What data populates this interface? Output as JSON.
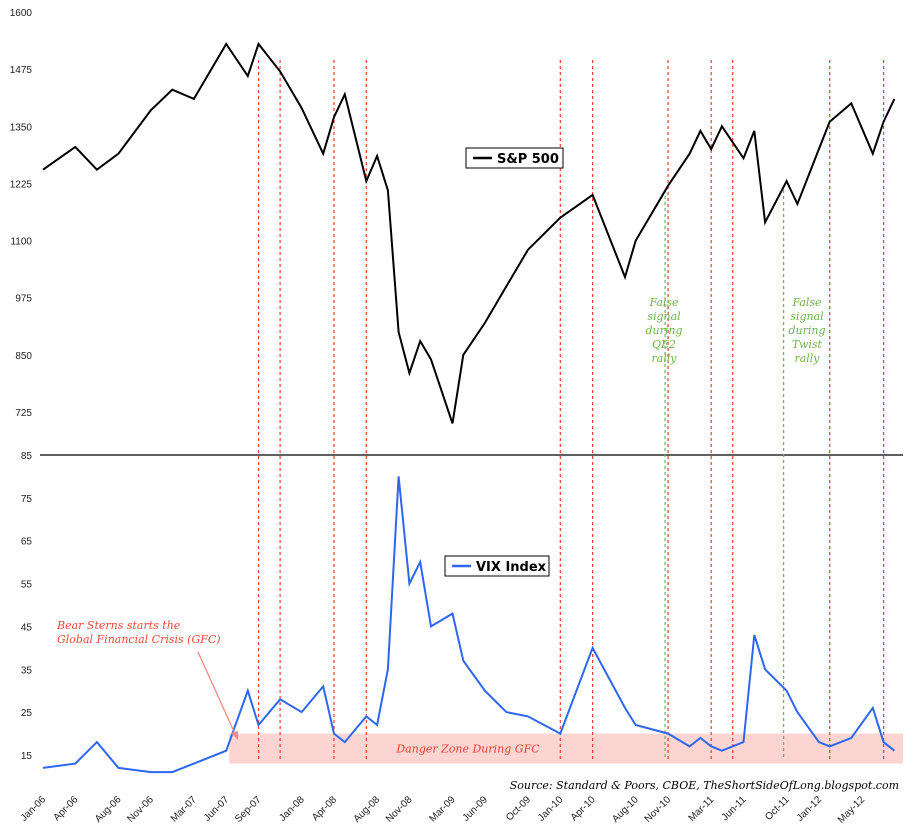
{
  "chart_data": [
    {
      "type": "line",
      "series": [
        {
          "name": "S&P 500",
          "color": "#000000",
          "x": [
            "Jan-06",
            "Apr-06",
            "Jun-06",
            "Aug-06",
            "Nov-06",
            "Jan-07",
            "Mar-07",
            "Jun-07",
            "Aug-07",
            "Sep-07",
            "Nov-07",
            "Jan-08",
            "Mar-08",
            "Apr-08",
            "May-08",
            "Jul-08",
            "Aug-08",
            "Sep-08",
            "Oct-08",
            "Nov-08",
            "Dec-08",
            "Jan-09",
            "Mar-09",
            "Apr-09",
            "Jun-09",
            "Aug-09",
            "Oct-09",
            "Jan-10",
            "Apr-10",
            "Jul-10",
            "Aug-10",
            "Nov-10",
            "Jan-11",
            "Feb-11",
            "Mar-11",
            "Apr-11",
            "Jun-11",
            "Jul-11",
            "Aug-11",
            "Oct-11",
            "Nov-11",
            "Jan-12",
            "Feb-12",
            "Apr-12",
            "Jun-12",
            "Jul-12",
            "Aug-12"
          ],
          "values": [
            1255,
            1305,
            1255,
            1290,
            1385,
            1430,
            1410,
            1530,
            1460,
            1530,
            1470,
            1390,
            1290,
            1370,
            1420,
            1230,
            1285,
            1210,
            900,
            810,
            880,
            840,
            700,
            850,
            920,
            1000,
            1080,
            1150,
            1200,
            1020,
            1100,
            1220,
            1290,
            1340,
            1300,
            1350,
            1280,
            1340,
            1140,
            1230,
            1180,
            1300,
            1360,
            1400,
            1290,
            1360,
            1410
          ]
        }
      ],
      "ylim": [
        650,
        1600
      ],
      "yticks": [
        "1600",
        "1475",
        "1350",
        "1225",
        "1100",
        "975",
        "850",
        "725"
      ],
      "legend": "S&P 500",
      "legend_position": "top-center"
    },
    {
      "type": "line",
      "series": [
        {
          "name": "VIX Index",
          "color": "#2d67ee",
          "x": [
            "Jan-06",
            "Apr-06",
            "Jun-06",
            "Aug-06",
            "Nov-06",
            "Jan-07",
            "Mar-07",
            "Jun-07",
            "Aug-07",
            "Sep-07",
            "Nov-07",
            "Jan-08",
            "Mar-08",
            "Apr-08",
            "May-08",
            "Jul-08",
            "Aug-08",
            "Sep-08",
            "Oct-08",
            "Nov-08",
            "Dec-08",
            "Jan-09",
            "Mar-09",
            "Apr-09",
            "Jun-09",
            "Aug-09",
            "Oct-09",
            "Jan-10",
            "Apr-10",
            "Jul-10",
            "Aug-10",
            "Nov-10",
            "Jan-11",
            "Feb-11",
            "Mar-11",
            "Apr-11",
            "Jun-11",
            "Jul-11",
            "Aug-11",
            "Oct-11",
            "Nov-11",
            "Jan-12",
            "Feb-12",
            "Apr-12",
            "Jun-12",
            "Jul-12",
            "Aug-12"
          ],
          "values": [
            12,
            13,
            18,
            12,
            11,
            11,
            13,
            16,
            30,
            22,
            28,
            25,
            31,
            20,
            18,
            24,
            22,
            35,
            80,
            55,
            60,
            45,
            48,
            37,
            30,
            25,
            24,
            20,
            40,
            26,
            22,
            20,
            17,
            19,
            17,
            16,
            18,
            43,
            35,
            30,
            25,
            18,
            17,
            19,
            26,
            18,
            16
          ]
        }
      ],
      "ylim": [
        5,
        85
      ],
      "yticks": [
        "85",
        "75",
        "65",
        "55",
        "45",
        "35",
        "25",
        "15"
      ],
      "legend": "VIX Index",
      "legend_position": "center",
      "danger_zone": {
        "from": 13,
        "to": 20,
        "label": "Danger Zone During GFC"
      }
    }
  ],
  "x_tick_labels": [
    "Jan-06",
    "Apr-06",
    "Aug-06",
    "Nov-06",
    "Mar-07",
    "Jun-07",
    "Sep-07",
    "Jan-08",
    "Apr-08",
    "Aug-08",
    "Nov-08",
    "Mar-09",
    "Jun-09",
    "Oct-09",
    "Jan-10",
    "Apr-10",
    "Aug-10",
    "Nov-10",
    "Mar-11",
    "Jun-11",
    "Oct-11",
    "Jan-12",
    "May-12"
  ],
  "signal_lines": {
    "red": [
      "Sep-07",
      "Nov-07",
      "Apr-08",
      "Jul-08",
      "Jan-10",
      "Apr-10",
      "Nov-10",
      "Mar-11",
      "May-11",
      "Feb-12",
      "Jul-12"
    ],
    "green": [
      "Nov-10",
      "Oct-11"
    ]
  },
  "annotations": {
    "qe2": [
      "False",
      "signal",
      "during",
      "QE2",
      "rally"
    ],
    "twist": [
      "False",
      "signal",
      "during",
      "Twist",
      "rally"
    ],
    "bear": [
      "Bear Sterns starts the",
      "Global Financial Crisis (GFC)"
    ],
    "source": "Source: Standard & Poors, CBOE, TheShortSideOfLong.blogspot.com"
  },
  "colors": {
    "sp500": "#000000",
    "vix": "#2d67ee",
    "signal_red": "#ee3b2b",
    "signal_green": "#6fb44a",
    "danger_zone_fill": "#fcd5d2"
  }
}
